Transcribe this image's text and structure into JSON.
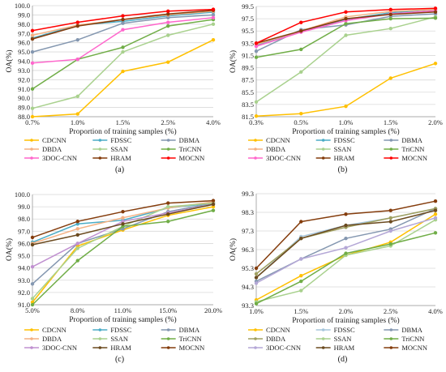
{
  "chart_data": [
    {
      "type": "line",
      "panel_label": "(a)",
      "xlabel": "Proportion of training samples (%)",
      "ylabel": "OA(%)",
      "categories": [
        "0.7%",
        "1.0%",
        "1.5%",
        "2.5%",
        "4.0%"
      ],
      "yticks": [
        "88.0",
        "89.0",
        "90.0",
        "91.0",
        "92.0",
        "93.0",
        "94.0",
        "95.0",
        "96.0",
        "97.0",
        "98.0",
        "99.0",
        "100.0"
      ],
      "ylim": [
        88,
        100
      ],
      "series": [
        {
          "name": "CDCNN",
          "color": "#FFC000",
          "values": [
            88.0,
            88.3,
            92.9,
            93.9,
            96.3
          ]
        },
        {
          "name": "FDSSC",
          "color": "#4BACC6",
          "values": [
            96.5,
            97.9,
            98.3,
            98.9,
            99.3
          ]
        },
        {
          "name": "DBMA",
          "color": "#8497B0",
          "values": [
            95.0,
            96.3,
            98.1,
            98.7,
            99.0
          ]
        },
        {
          "name": "DBDA",
          "color": "#F4B183",
          "values": [
            96.8,
            97.9,
            98.5,
            99.0,
            99.4
          ]
        },
        {
          "name": "SSAN",
          "color": "#A9D18E",
          "values": [
            88.9,
            90.2,
            95.0,
            96.8,
            98.0
          ]
        },
        {
          "name": "TriCNN",
          "color": "#70AD47",
          "values": [
            91.0,
            94.2,
            95.5,
            97.8,
            98.5
          ]
        },
        {
          "name": "3DOC-CNN",
          "color": "#FF66CC",
          "values": [
            93.8,
            94.2,
            97.4,
            98.2,
            98.7
          ]
        },
        {
          "name": "HRAM",
          "color": "#843C0C",
          "values": [
            96.4,
            97.8,
            98.5,
            99.1,
            99.5
          ]
        },
        {
          "name": "MOCNN",
          "color": "#FF0000",
          "values": [
            97.3,
            98.2,
            98.9,
            99.4,
            99.6
          ]
        }
      ]
    },
    {
      "type": "line",
      "panel_label": "(b)",
      "xlabel": "Proportion of training samples (%)",
      "ylabel": "OA(%)",
      "categories": [
        "0.3%",
        "0.5%",
        "1.0%",
        "1.5%",
        "2.0%"
      ],
      "yticks": [
        "81.5",
        "83.5",
        "85.5",
        "87.5",
        "89.5",
        "91.5",
        "93.5",
        "95.5",
        "97.5",
        "99.5"
      ],
      "ylim": [
        81.5,
        99.5
      ],
      "series": [
        {
          "name": "CDCNN",
          "color": "#FFC000",
          "values": [
            81.6,
            82.0,
            83.2,
            87.8,
            90.2
          ]
        },
        {
          "name": "FDSSC",
          "color": "#4BACC6",
          "values": [
            93.2,
            95.5,
            97.4,
            98.5,
            99.0
          ]
        },
        {
          "name": "DBMA",
          "color": "#8497B0",
          "values": [
            92.2,
            95.7,
            96.5,
            97.9,
            98.3
          ]
        },
        {
          "name": "DBDA",
          "color": "#F4B183",
          "values": [
            93.3,
            95.5,
            97.8,
            98.7,
            99.0
          ]
        },
        {
          "name": "SSAN",
          "color": "#A9D18E",
          "values": [
            83.9,
            88.8,
            94.8,
            95.9,
            97.8
          ]
        },
        {
          "name": "TriCNN",
          "color": "#70AD47",
          "values": [
            91.2,
            92.5,
            96.7,
            97.5,
            97.6
          ]
        },
        {
          "name": "3DOC-CNN",
          "color": "#FF66CC",
          "values": [
            93.0,
            95.3,
            97.2,
            98.3,
            98.8
          ]
        },
        {
          "name": "HRAM",
          "color": "#843C0C",
          "values": [
            93.5,
            95.5,
            97.5,
            98.2,
            98.6
          ]
        },
        {
          "name": "MOCNN",
          "color": "#FF0000",
          "values": [
            93.5,
            96.9,
            98.6,
            99.0,
            99.2
          ]
        }
      ]
    },
    {
      "type": "line",
      "panel_label": "(c)",
      "xlabel": "Proportion of training samples (%)",
      "ylabel": "OA(%)",
      "categories": [
        "5.0%",
        "8.0%",
        "11.0%",
        "15.0%",
        "20.0%"
      ],
      "yticks": [
        "91.0",
        "92.0",
        "93.0",
        "94.0",
        "95.0",
        "96.0",
        "97.0",
        "98.0",
        "99.0",
        "100.0"
      ],
      "ylim": [
        91,
        100
      ],
      "series": [
        {
          "name": "CDCNN",
          "color": "#FFC000",
          "values": [
            91.2,
            95.8,
            97.1,
            98.3,
            99.0
          ]
        },
        {
          "name": "FDSSC",
          "color": "#4BACC6",
          "values": [
            96.1,
            97.6,
            97.9,
            98.9,
            99.3
          ]
        },
        {
          "name": "DBMA",
          "color": "#8497B0",
          "values": [
            92.7,
            96.0,
            97.2,
            98.6,
            99.3
          ]
        },
        {
          "name": "DBDA",
          "color": "#F4B183",
          "values": [
            96.0,
            97.2,
            98.1,
            98.9,
            99.4
          ]
        },
        {
          "name": "SSAN",
          "color": "#A9D18E",
          "values": [
            91.5,
            95.6,
            97.4,
            99.0,
            99.3
          ]
        },
        {
          "name": "TriCNN",
          "color": "#70AD47",
          "values": [
            91.0,
            94.6,
            97.4,
            97.8,
            98.7
          ]
        },
        {
          "name": "3DOC-CNN",
          "color": "#C090D0",
          "values": [
            94.1,
            96.0,
            97.8,
            98.5,
            99.2
          ]
        },
        {
          "name": "HRAM",
          "color": "#6B4A1F",
          "values": [
            95.9,
            96.7,
            97.6,
            98.4,
            99.2
          ]
        },
        {
          "name": "MOCNN",
          "color": "#843C0C",
          "values": [
            96.5,
            97.8,
            98.6,
            99.3,
            99.5
          ]
        }
      ]
    },
    {
      "type": "line",
      "panel_label": "(d)",
      "xlabel": "Proportion of training samples (%)",
      "ylabel": "OA(%)",
      "categories": [
        "1.0%",
        "1.5%",
        "2.0%",
        "2.5%",
        "4.0%"
      ],
      "yticks": [
        "93.3",
        "94.3",
        "95.3",
        "96.3",
        "97.3",
        "98.3",
        "99.3"
      ],
      "ylim": [
        93.3,
        99.3
      ],
      "series": [
        {
          "name": "CDCNN",
          "color": "#FFC000",
          "values": [
            93.6,
            94.9,
            96.0,
            96.7,
            98.2
          ]
        },
        {
          "name": "FDSSC",
          "color": "#A6C5DB",
          "values": [
            94.8,
            97.0,
            97.6,
            98.0,
            98.5
          ]
        },
        {
          "name": "DBMA",
          "color": "#8497B0",
          "values": [
            94.6,
            95.8,
            96.9,
            97.4,
            98.5
          ]
        },
        {
          "name": "DBDA",
          "color": "#A0A060",
          "values": [
            95.0,
            96.9,
            97.5,
            98.0,
            98.5
          ]
        },
        {
          "name": "SSAN",
          "color": "#A9D18E",
          "values": [
            93.5,
            94.1,
            96.0,
            96.5,
            97.9
          ]
        },
        {
          "name": "TriCNN",
          "color": "#70AD47",
          "values": [
            93.4,
            94.6,
            96.1,
            96.6,
            97.2
          ]
        },
        {
          "name": "3DOC-CNN",
          "color": "#B4A7D6",
          "values": [
            94.5,
            95.8,
            96.4,
            97.3,
            98.0
          ]
        },
        {
          "name": "HRAM",
          "color": "#6B4A1F",
          "values": [
            94.8,
            96.9,
            97.6,
            97.8,
            98.4
          ]
        },
        {
          "name": "MOCNN",
          "color": "#843C0C",
          "values": [
            95.3,
            97.8,
            98.2,
            98.4,
            98.9
          ]
        }
      ]
    }
  ]
}
